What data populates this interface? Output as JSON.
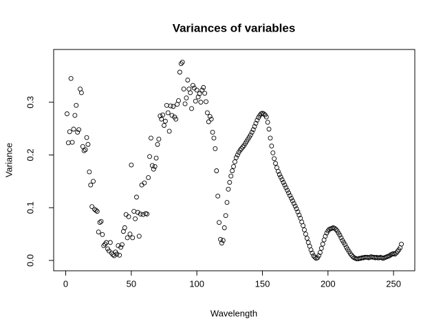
{
  "chart_data": {
    "type": "scatter",
    "title": "Variances of variables",
    "x_label": "Wavelength",
    "y_label": "Variance",
    "x": [
      1,
      2,
      3,
      4,
      5,
      6,
      7,
      8,
      9,
      10,
      11,
      12,
      13,
      14,
      15,
      16,
      17,
      18,
      19,
      20,
      21,
      22,
      23,
      24,
      25,
      26,
      27,
      28,
      29,
      30,
      31,
      32,
      33,
      34,
      35,
      36,
      37,
      38,
      39,
      40,
      41,
      42,
      43,
      44,
      45,
      46,
      47,
      48,
      49,
      50,
      51,
      52,
      53,
      54,
      55,
      56,
      57,
      58,
      59,
      60,
      61,
      62,
      63,
      64,
      65,
      66,
      67,
      68,
      69,
      70,
      71,
      72,
      73,
      74,
      75,
      76,
      77,
      78,
      79,
      80,
      81,
      82,
      83,
      84,
      85,
      86,
      87,
      88,
      89,
      90,
      91,
      92,
      93,
      94,
      95,
      96,
      97,
      98,
      99,
      100,
      101,
      102,
      103,
      104,
      105,
      106,
      107,
      108,
      109,
      110,
      111,
      112,
      113,
      114,
      115,
      116,
      117,
      118,
      119,
      120,
      121,
      122,
      123,
      124,
      125,
      126,
      127,
      128,
      129,
      130,
      131,
      132,
      133,
      134,
      135,
      136,
      137,
      138,
      139,
      140,
      141,
      142,
      143,
      144,
      145,
      146,
      147,
      148,
      149,
      150,
      151,
      152,
      153,
      154,
      155,
      156,
      157,
      158,
      159,
      160,
      161,
      162,
      163,
      164,
      165,
      166,
      167,
      168,
      169,
      170,
      171,
      172,
      173,
      174,
      175,
      176,
      177,
      178,
      179,
      180,
      181,
      182,
      183,
      184,
      185,
      186,
      187,
      188,
      189,
      190,
      191,
      192,
      193,
      194,
      195,
      196,
      197,
      198,
      199,
      200,
      201,
      202,
      203,
      204,
      205,
      206,
      207,
      208,
      209,
      210,
      211,
      212,
      213,
      214,
      215,
      216,
      217,
      218,
      219,
      220,
      221,
      222,
      223,
      224,
      225,
      226,
      227,
      228,
      229,
      230,
      231,
      232,
      233,
      234,
      235,
      236,
      237,
      238,
      239,
      240,
      241,
      242,
      243,
      244,
      245,
      246,
      247,
      248,
      249,
      250,
      251,
      252,
      253,
      254,
      255,
      256
    ],
    "values": [
      0.278,
      0.223,
      0.244,
      0.345,
      0.224,
      0.249,
      0.275,
      0.294,
      0.243,
      0.248,
      0.325,
      0.318,
      0.216,
      0.208,
      0.21,
      0.233,
      0.22,
      0.168,
      0.143,
      0.102,
      0.15,
      0.097,
      0.095,
      0.093,
      0.054,
      0.072,
      0.074,
      0.049,
      0.028,
      0.031,
      0.034,
      0.022,
      0.018,
      0.034,
      0.014,
      0.011,
      0.009,
      0.016,
      0.012,
      0.028,
      0.01,
      0.025,
      0.03,
      0.055,
      0.062,
      0.087,
      0.043,
      0.083,
      0.05,
      0.181,
      0.043,
      0.093,
      0.079,
      0.12,
      0.091,
      0.046,
      0.088,
      0.143,
      0.087,
      0.147,
      0.089,
      0.088,
      0.157,
      0.197,
      0.232,
      0.18,
      0.173,
      0.178,
      0.194,
      0.22,
      0.23,
      0.274,
      0.268,
      0.276,
      0.256,
      0.264,
      0.294,
      0.28,
      0.245,
      0.293,
      0.275,
      0.292,
      0.272,
      0.268,
      0.296,
      0.303,
      0.357,
      0.373,
      0.376,
      0.325,
      0.297,
      0.308,
      0.342,
      0.325,
      0.318,
      0.288,
      0.332,
      0.327,
      0.302,
      0.323,
      0.31,
      0.316,
      0.3,
      0.323,
      0.328,
      0.317,
      0.301,
      0.28,
      0.263,
      0.273,
      0.268,
      0.243,
      0.232,
      0.212,
      0.17,
      0.122,
      0.072,
      0.04,
      0.033,
      0.038,
      0.062,
      0.085,
      0.11,
      0.135,
      0.148,
      0.16,
      0.17,
      0.178,
      0.187,
      0.195,
      0.2,
      0.205,
      0.209,
      0.212,
      0.215,
      0.218,
      0.222,
      0.226,
      0.23,
      0.234,
      0.238,
      0.243,
      0.248,
      0.254,
      0.26,
      0.266,
      0.271,
      0.275,
      0.278,
      0.279,
      0.278,
      0.276,
      0.272,
      0.262,
      0.249,
      0.232,
      0.217,
      0.204,
      0.193,
      0.184,
      0.176,
      0.169,
      0.163,
      0.158,
      0.153,
      0.148,
      0.143,
      0.138,
      0.133,
      0.128,
      0.123,
      0.118,
      0.113,
      0.108,
      0.103,
      0.098,
      0.092,
      0.086,
      0.08,
      0.073,
      0.066,
      0.058,
      0.05,
      0.042,
      0.034,
      0.027,
      0.02,
      0.014,
      0.009,
      0.006,
      0.004,
      0.005,
      0.009,
      0.015,
      0.023,
      0.031,
      0.039,
      0.046,
      0.052,
      0.056,
      0.059,
      0.06,
      0.061,
      0.062,
      0.061,
      0.059,
      0.056,
      0.052,
      0.048,
      0.043,
      0.038,
      0.034,
      0.03,
      0.025,
      0.021,
      0.017,
      0.013,
      0.01,
      0.007,
      0.005,
      0.004,
      0.003,
      0.003,
      0.004,
      0.004,
      0.005,
      0.005,
      0.006,
      0.006,
      0.006,
      0.005,
      0.006,
      0.007,
      0.006,
      0.006,
      0.005,
      0.006,
      0.005,
      0.005,
      0.006,
      0.005,
      0.004,
      0.005,
      0.006,
      0.007,
      0.008,
      0.009,
      0.011,
      0.012,
      0.013,
      0.012,
      0.014,
      0.017,
      0.02,
      0.024,
      0.031
    ],
    "color": "#000000",
    "xlim": [
      -9.2,
      266.2
    ],
    "xticks": [
      0,
      50,
      100,
      150,
      200,
      250
    ],
    "ylim": [
      -0.0196,
      0.4
    ],
    "yticks": [
      {
        "value": 0,
        "label": "0.0"
      },
      0.1,
      0.2,
      0.3
    ]
  }
}
